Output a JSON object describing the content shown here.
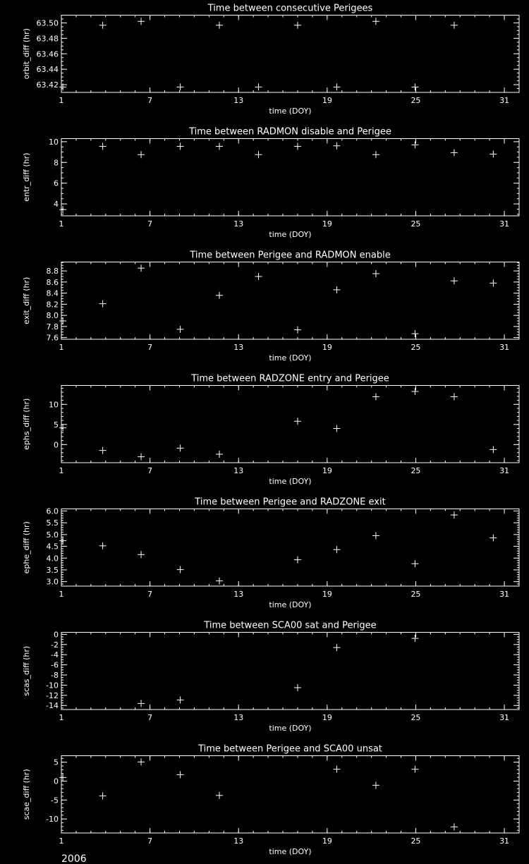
{
  "year_label": "2006",
  "colors": {
    "background": "#000000",
    "foreground": "#ffffff"
  },
  "chart_data": [
    {
      "type": "scatter",
      "marker": "plus",
      "title": "Time between consecutive Perigees",
      "xlabel": "time (DOY)",
      "ylabel": "orbit_diff (hr)",
      "xlim": [
        1,
        32
      ],
      "ylim": [
        63.41,
        63.51
      ],
      "xticks": [
        1,
        7,
        13,
        19,
        25,
        31
      ],
      "xtick_labels": [
        "1",
        "7",
        "13",
        "19",
        "25",
        "31"
      ],
      "x_minor_step": 1,
      "yticks": [
        63.42,
        63.44,
        63.46,
        63.48,
        63.5
      ],
      "ytick_labels": [
        "63.42",
        "63.44",
        "63.46",
        "63.48",
        "63.50"
      ],
      "y_minor_step": 0.005,
      "x": [
        1.1,
        3.8,
        6.4,
        9.05,
        11.7,
        14.35,
        17.0,
        19.65,
        22.3,
        24.95,
        27.6
      ],
      "y": [
        63.417,
        63.497,
        63.502,
        63.417,
        63.497,
        63.417,
        63.497,
        63.417,
        63.502,
        63.417,
        63.497
      ]
    },
    {
      "type": "scatter",
      "marker": "plus",
      "title": "Time between RADMON disable and Perigee",
      "xlabel": "time (DOY)",
      "ylabel": "entr_diff (hr)",
      "xlim": [
        1,
        32
      ],
      "ylim": [
        2.85,
        10.3
      ],
      "xticks": [
        1,
        7,
        13,
        19,
        25,
        31
      ],
      "xtick_labels": [
        "1",
        "7",
        "13",
        "19",
        "25",
        "31"
      ],
      "x_minor_step": 1,
      "yticks": [
        4,
        6,
        8,
        10
      ],
      "ytick_labels": [
        "4",
        "6",
        "8",
        "10"
      ],
      "y_minor_step": 0.5,
      "x": [
        1.1,
        3.8,
        6.4,
        9.05,
        11.7,
        14.35,
        17.0,
        19.65,
        22.3,
        24.95,
        27.6,
        30.25
      ],
      "y": [
        3.45,
        9.55,
        8.75,
        9.55,
        9.55,
        8.75,
        9.55,
        9.6,
        8.75,
        9.7,
        8.95,
        8.8
      ]
    },
    {
      "type": "scatter",
      "marker": "plus",
      "title": "Time between Perigee and RADMON enable",
      "xlabel": "time (DOY)",
      "ylabel": "exit_diff (hr)",
      "xlim": [
        1,
        32
      ],
      "ylim": [
        7.57,
        8.96
      ],
      "xticks": [
        1,
        7,
        13,
        19,
        25,
        31
      ],
      "xtick_labels": [
        "1",
        "7",
        "13",
        "19",
        "25",
        "31"
      ],
      "x_minor_step": 1,
      "yticks": [
        7.6,
        7.8,
        8.0,
        8.2,
        8.4,
        8.6,
        8.8
      ],
      "ytick_labels": [
        "7.6",
        "7.8",
        "8.0",
        "8.2",
        "8.4",
        "8.6",
        "8.8"
      ],
      "y_minor_step": 0.05,
      "x": [
        1.1,
        3.8,
        6.4,
        9.05,
        11.7,
        14.35,
        17.0,
        19.65,
        22.3,
        24.95,
        27.6,
        30.25
      ],
      "y": [
        7.9,
        8.21,
        8.85,
        7.75,
        8.36,
        8.7,
        7.74,
        8.46,
        8.75,
        7.67,
        8.62,
        8.58
      ]
    },
    {
      "type": "scatter",
      "marker": "plus",
      "title": "Time between RADZONE entry and Perigee",
      "xlabel": "time (DOY)",
      "ylabel": "ephs_diff (hr)",
      "xlim": [
        1,
        32
      ],
      "ylim": [
        -4.5,
        14.7
      ],
      "xticks": [
        1,
        7,
        13,
        19,
        25,
        31
      ],
      "xtick_labels": [
        "1",
        "7",
        "13",
        "19",
        "25",
        "31"
      ],
      "x_minor_step": 1,
      "yticks": [
        0,
        5,
        10
      ],
      "ytick_labels": [
        "0",
        "5",
        "10"
      ],
      "y_minor_step": 1,
      "x": [
        1.1,
        3.8,
        6.4,
        9.05,
        11.7,
        17.0,
        19.65,
        22.3,
        24.95,
        27.6,
        30.25
      ],
      "y": [
        4.15,
        -1.46,
        -3.04,
        -0.88,
        -2.4,
        5.8,
        4.0,
        11.9,
        13.2,
        11.9,
        -1.23
      ]
    },
    {
      "type": "scatter",
      "marker": "plus",
      "title": "Time between Perigee and RADZONE exit",
      "xlabel": "time (DOY)",
      "ylabel": "ephe_diff (hr)",
      "xlim": [
        1,
        32
      ],
      "ylim": [
        2.81,
        6.09
      ],
      "xticks": [
        1,
        7,
        13,
        19,
        25,
        31
      ],
      "xtick_labels": [
        "1",
        "7",
        "13",
        "19",
        "25",
        "31"
      ],
      "x_minor_step": 1,
      "yticks": [
        3.0,
        3.5,
        4.0,
        4.5,
        5.0,
        5.5,
        6.0
      ],
      "ytick_labels": [
        "3.0",
        "3.5",
        "4.0",
        "4.5",
        "5.0",
        "5.5",
        "6.0"
      ],
      "y_minor_step": 0.1,
      "x": [
        1.1,
        3.8,
        6.4,
        9.05,
        11.7,
        17.0,
        19.65,
        22.3,
        24.95,
        27.6,
        30.25
      ],
      "y": [
        4.74,
        4.52,
        4.15,
        3.51,
        3.03,
        3.93,
        4.36,
        4.95,
        3.76,
        5.83,
        4.86
      ]
    },
    {
      "type": "scatter",
      "marker": "plus",
      "title": "Time between SCA00 sat and Perigee",
      "xlabel": "time (DOY)",
      "ylabel": "scas_diff (hr)",
      "xlim": [
        1,
        32
      ],
      "ylim": [
        -14.8,
        0.4
      ],
      "xticks": [
        1,
        7,
        13,
        19,
        25,
        31
      ],
      "xtick_labels": [
        "1",
        "7",
        "13",
        "19",
        "25",
        "31"
      ],
      "x_minor_step": 1,
      "yticks": [
        -14,
        -12,
        -10,
        -8,
        -6,
        -4,
        -2,
        0
      ],
      "ytick_labels": [
        "-14",
        "-12",
        "-10",
        "-8",
        "-6",
        "-4",
        "-2",
        "0"
      ],
      "y_minor_step": 0.5,
      "x": [
        6.4,
        9.05,
        17.0,
        19.65,
        24.95
      ],
      "y": [
        -13.6,
        -12.9,
        -10.5,
        -2.6,
        -0.8
      ]
    },
    {
      "type": "scatter",
      "marker": "plus",
      "title": "Time between Perigee and SCA00 unsat",
      "xlabel": "time (DOY)",
      "ylabel": "scae_diff (hr)",
      "xlim": [
        1,
        32
      ],
      "ylim": [
        -13.7,
        6.7
      ],
      "xticks": [
        1,
        7,
        13,
        19,
        25,
        31
      ],
      "xtick_labels": [
        "1",
        "7",
        "13",
        "19",
        "25",
        "31"
      ],
      "x_minor_step": 1,
      "yticks": [
        -10,
        -5,
        0,
        5
      ],
      "ytick_labels": [
        "-10",
        "-5",
        "0",
        "5"
      ],
      "y_minor_step": 1,
      "x": [
        1.1,
        3.8,
        6.4,
        9.05,
        11.7,
        19.65,
        22.3,
        24.95,
        27.6
      ],
      "y": [
        0.95,
        -3.9,
        5.06,
        1.7,
        -3.77,
        3.13,
        -1.1,
        3.13,
        -12.1
      ]
    }
  ]
}
